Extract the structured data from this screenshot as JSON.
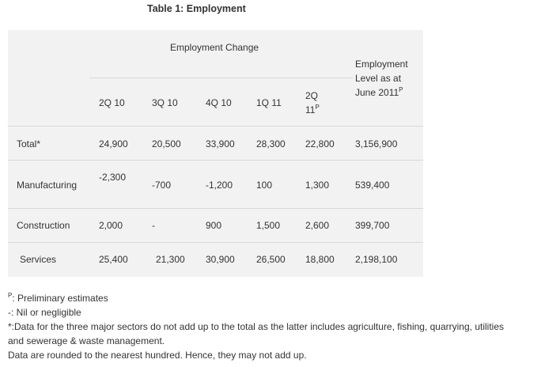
{
  "title": "Table 1: Employment",
  "header": {
    "group_label": "Employment Change",
    "col_2q10": "2Q 10",
    "col_3q10": "3Q 10",
    "col_4q10": "4Q 10",
    "col_1q11": "1Q 11",
    "col_2q11_line1": "2Q",
    "col_2q11_line2": "11",
    "col_2q11_sup": "P",
    "level_line1": "Employment",
    "level_line2": "Level as at",
    "level_line3": "June 2011",
    "level_sup": "P"
  },
  "rows": [
    {
      "label": "Total*",
      "v2q10": "24,900",
      "v3q10": "20,500",
      "v4q10": "33,900",
      "v1q11": "28,300",
      "v2q11": "22,800",
      "level": "3,156,900"
    },
    {
      "label": "Manufacturing",
      "v2q10": "-2,300",
      "v3q10": "-700",
      "v4q10": "-1,200",
      "v1q11": "100",
      "v2q11": "1,300",
      "level": "539,400"
    },
    {
      "label": "Construction",
      "v2q10": "2,000",
      "v3q10": "-",
      "v4q10": "900",
      "v1q11": "1,500",
      "v2q11": "2,600",
      "level": "399,700"
    },
    {
      "label": "Services",
      "v2q10": "25,400",
      "v3q10": "21,300",
      "v4q10": "30,900",
      "v1q11": "26,500",
      "v2q11": "18,800",
      "level": "2,198,100"
    }
  ],
  "notes": {
    "p_marker": "P",
    "p_text": ": Preliminary estimates",
    "nil": "-: Nil or negligible",
    "sectors_line1": "*:Data for the three major sectors do not add up to the total as the latter includes agriculture, fishing, quarrying, utilities",
    "sectors_line2": "and sewerage & waste management.",
    "rounding": "Data are rounded to the nearest hundred. Hence, they may not add up."
  }
}
